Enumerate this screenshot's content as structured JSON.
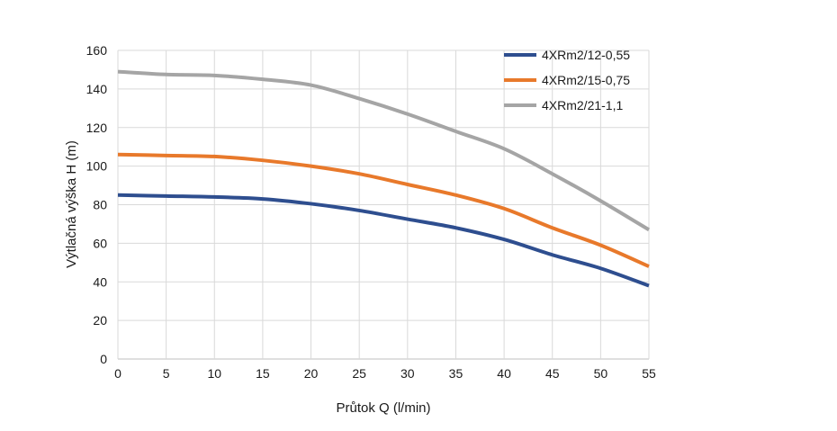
{
  "chart_data": {
    "type": "line",
    "title": "",
    "xlabel": "Průtok Q (l/min)",
    "ylabel": "Výtlačná výška H (m)",
    "xlim": [
      0,
      55
    ],
    "ylim": [
      0,
      160
    ],
    "x_ticks": [
      0,
      5,
      10,
      15,
      20,
      25,
      30,
      35,
      40,
      45,
      50,
      55
    ],
    "y_ticks": [
      0,
      20,
      40,
      60,
      80,
      100,
      120,
      140,
      160
    ],
    "grid": {
      "vertical": true,
      "horizontal": true
    },
    "legend_position": "top-right",
    "x": [
      0,
      5,
      10,
      15,
      20,
      25,
      30,
      35,
      40,
      45,
      50,
      55
    ],
    "series": [
      {
        "name": "4XRm2/12-0,55",
        "color": "#2e4e8f",
        "values": [
          85,
          84.5,
          84,
          83,
          80.5,
          77,
          72.5,
          68,
          62,
          54,
          47,
          38
        ]
      },
      {
        "name": "4XRm2/15-0,75",
        "color": "#e8792b",
        "values": [
          106,
          105.5,
          105,
          103,
          100,
          96,
          90.5,
          85,
          78,
          68,
          59,
          48
        ]
      },
      {
        "name": "4XRm2/21-1,1",
        "color": "#a5a5a5",
        "values": [
          149,
          147.5,
          147,
          145,
          142,
          135,
          127,
          118,
          109,
          96,
          82,
          67
        ]
      }
    ]
  }
}
